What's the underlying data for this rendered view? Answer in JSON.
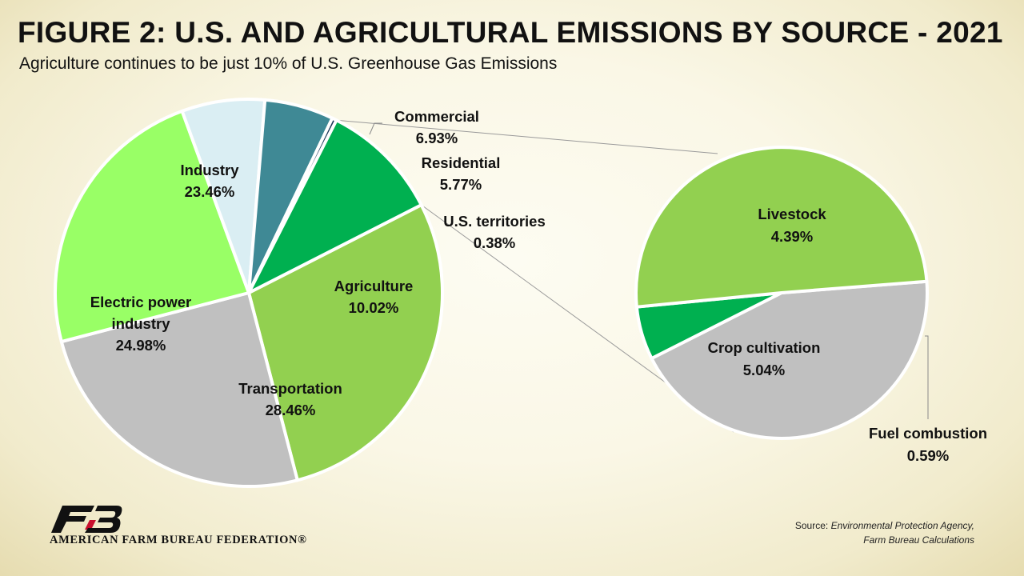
{
  "header": {
    "title": "FIGURE 2: U.S. AND AGRICULTURAL EMISSIONS BY SOURCE - 2021",
    "subtitle": "Agriculture continues to be just 10% of U.S. Greenhouse Gas Emissions"
  },
  "chart_data": [
    {
      "type": "pie",
      "slices": [
        {
          "label": "Transportation",
          "value": 28.46,
          "display": "28.46%",
          "color": "#92d050"
        },
        {
          "label": "Electric power industry",
          "lines": [
            "Electric power",
            "industry"
          ],
          "value": 24.98,
          "display": "24.98%",
          "color": "#c0c0c0"
        },
        {
          "label": "Industry",
          "value": 23.46,
          "display": "23.46%",
          "color": "#99ff66"
        },
        {
          "label": "Commercial",
          "value": 6.93,
          "display": "6.93%",
          "color": "#daeef3"
        },
        {
          "label": "Residential",
          "value": 5.77,
          "display": "5.77%",
          "color": "#3f8995"
        },
        {
          "label": "U.S. territories",
          "value": 0.38,
          "display": "0.38%",
          "color": "#1f3a5a"
        },
        {
          "label": "Agriculture",
          "value": 10.02,
          "display": "10.02%",
          "color": "#00b050"
        }
      ]
    },
    {
      "type": "pie",
      "slices": [
        {
          "label": "Livestock",
          "value": 4.39,
          "display": "4.39%",
          "color": "#c0c0c0"
        },
        {
          "label": "Fuel combustion",
          "value": 0.59,
          "display": "0.59%",
          "color": "#00b050"
        },
        {
          "label": "Crop cultivation",
          "value": 5.04,
          "display": "5.04%",
          "color": "#92d050"
        }
      ]
    }
  ],
  "source": {
    "prefix": "Source: ",
    "line1": "Environmental Protection Agency,",
    "line2": "Farm Bureau Calculations"
  },
  "footer": {
    "org_name": "AMERICAN FARM BUREAU FEDERATION®",
    "logo_colors": {
      "primary": "#111111",
      "accent": "#c8102e"
    }
  }
}
